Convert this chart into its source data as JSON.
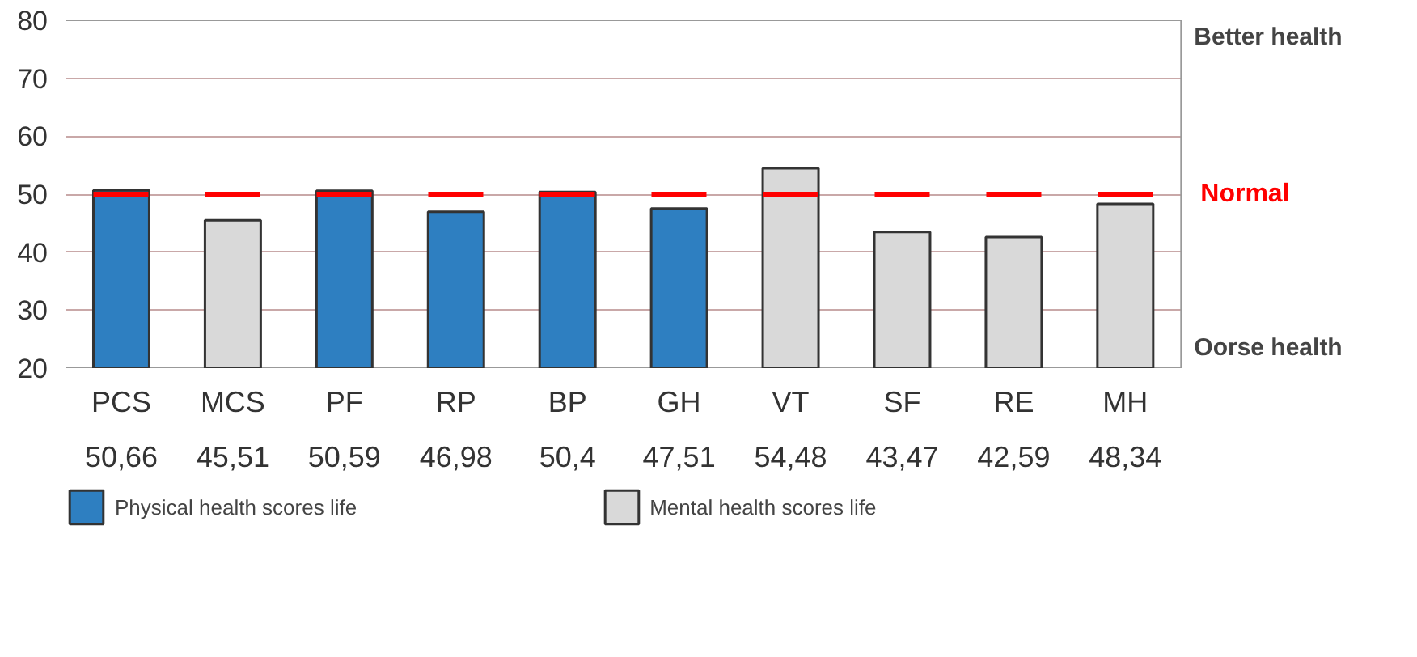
{
  "chart_data": {
    "type": "bar",
    "categories": [
      "PCS",
      "MCS",
      "PF",
      "RP",
      "BP",
      "GH",
      "VT",
      "SF",
      "RE",
      "MH"
    ],
    "series": [
      {
        "name": "Physical health scores life",
        "color": "#2e7fc1",
        "values": [
          50.66,
          null,
          50.59,
          46.98,
          50.4,
          47.51,
          null,
          null,
          null,
          null
        ],
        "value_labels": [
          "50,66",
          null,
          "50,59",
          "46,98",
          "50,4",
          "47,51",
          null,
          null,
          null,
          null
        ]
      },
      {
        "name": "Mental health scores life",
        "color": "#d9d9d9",
        "values": [
          null,
          45.51,
          null,
          null,
          null,
          null,
          54.48,
          43.47,
          42.59,
          48.34
        ],
        "value_labels": [
          null,
          "45,51",
          null,
          null,
          null,
          null,
          "54,48",
          "43,47",
          "42,59",
          "48,34"
        ]
      }
    ],
    "ylim": [
      20,
      80
    ],
    "yticks": [
      20,
      30,
      40,
      50,
      60,
      70,
      80
    ],
    "grid": "y",
    "legend": "bottom",
    "ref_lines": [
      {
        "axis": "y",
        "value": 50,
        "label": "Normal",
        "color": "#ff0000",
        "line_style": "dashed"
      }
    ],
    "annotations": [
      "Better health",
      "Oorse health"
    ]
  }
}
